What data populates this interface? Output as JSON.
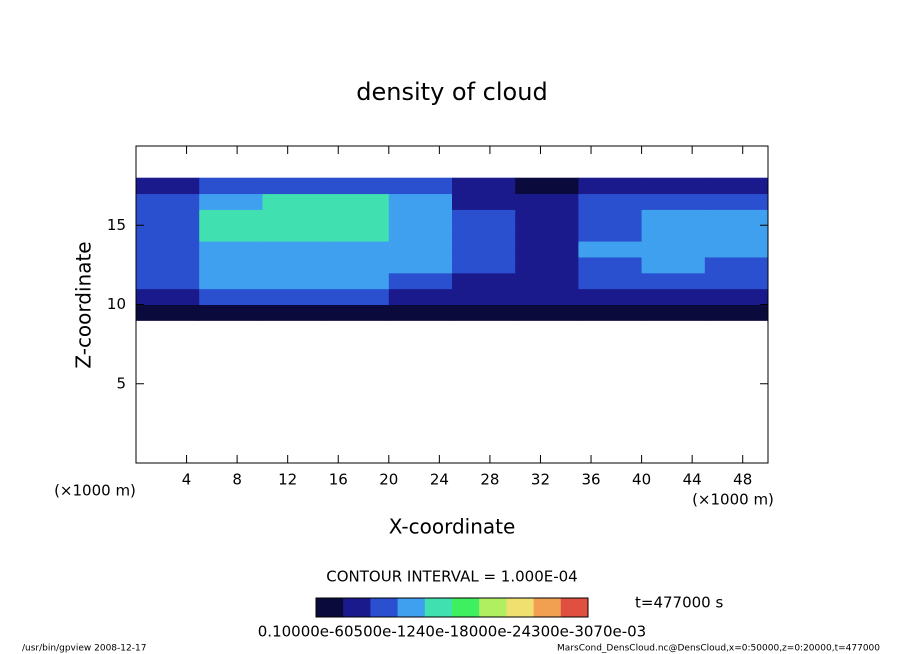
{
  "chart_data": {
    "type": "heatmap",
    "title": "density of cloud",
    "x_label": "X-coordinate",
    "y_label": "Z-coordinate",
    "x_unit": "(×1000 m)",
    "y_unit": "(×1000 m)",
    "contour_note": "CONTOUR INTERVAL = 1.000E-04",
    "time_note": "t=477000 s",
    "colorbar_labels": "0.10000e-60500e-1240e-18000e-24300e-3070e-03",
    "footer_left": "/usr/bin/gpview   2008-12-17",
    "footer_right": "MarsCond_DensCloud.nc@DensCloud,x=0:50000,z=0:20000,t=477000",
    "x": [
      0,
      5,
      10,
      15,
      20,
      25,
      30,
      35,
      40,
      45,
      50
    ],
    "y": [
      9,
      10,
      11,
      12,
      13,
      14,
      15,
      16,
      17,
      18
    ],
    "values": [
      [
        2e-05,
        3e-05,
        2e-05,
        2e-05,
        2e-05,
        2e-05,
        2e-05,
        2e-05,
        2e-05,
        2e-05
      ],
      [
        6e-05,
        7e-05,
        7e-05,
        7e-05,
        6e-05,
        5e-05,
        4e-05,
        6e-05,
        6e-05,
        6e-05
      ],
      [
        8e-05,
        0.0001,
        0.0001,
        0.0001,
        9e-05,
        6e-05,
        5e-05,
        8e-05,
        9e-05,
        8e-05
      ],
      [
        9e-05,
        0.00012,
        0.00012,
        0.00012,
        0.00011,
        7e-05,
        5e-05,
        9e-05,
        0.0001,
        9e-05
      ],
      [
        9e-05,
        0.00013,
        0.00013,
        0.00013,
        0.00012,
        8e-05,
        5e-05,
        0.0001,
        0.00011,
        0.0001
      ],
      [
        9e-05,
        0.00014,
        0.00014,
        0.00014,
        0.00013,
        8e-05,
        5e-05,
        9e-05,
        0.00011,
        0.0001
      ],
      [
        9e-05,
        0.00014,
        0.00015,
        0.00015,
        0.00012,
        7e-05,
        5e-05,
        8e-05,
        0.0001,
        0.0001
      ],
      [
        8e-05,
        0.00013,
        0.00014,
        0.00015,
        0.00011,
        6e-05,
        4e-05,
        7e-05,
        9e-05,
        9e-05
      ],
      [
        5e-05,
        8e-05,
        9e-05,
        9e-05,
        7e-05,
        4e-05,
        3e-05,
        5e-05,
        6e-05,
        6e-05
      ]
    ],
    "zlim": [
      0,
      0.00033
    ],
    "colormap": [
      "#0a0a3c",
      "#1a1a8c",
      "#2a50d0",
      "#3fa0f0",
      "#40e0b0",
      "#3ef060",
      "#b0f060",
      "#f0e070",
      "#f0a050",
      "#e05040"
    ],
    "xlim": [
      0,
      50
    ],
    "xticks": [
      4,
      8,
      12,
      16,
      20,
      24,
      28,
      32,
      36,
      40,
      44,
      48
    ],
    "ylim": [
      0,
      20
    ],
    "yticks": [
      5,
      10,
      15
    ]
  }
}
